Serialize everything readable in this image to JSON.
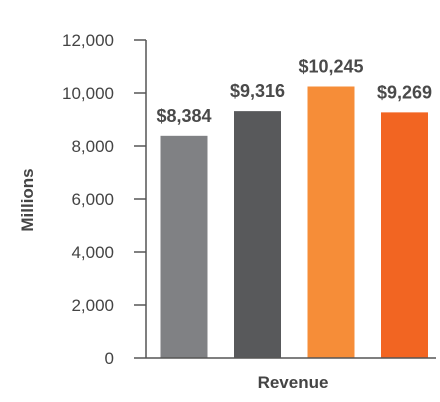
{
  "chart_data": {
    "type": "bar",
    "categories": [
      "",
      "",
      "",
      ""
    ],
    "values": [
      8384,
      9316,
      10245,
      9269
    ],
    "data_labels": [
      "$8,384",
      "$9,316",
      "$10,245",
      "$9,269"
    ],
    "colors": [
      "#808184",
      "#58595b",
      "#f68d38",
      "#f26522"
    ],
    "title": "",
    "xlabel": "Revenue",
    "ylabel": "Millions",
    "ylim": [
      0,
      12000
    ],
    "yticks": [
      0,
      2000,
      4000,
      6000,
      8000,
      10000,
      12000
    ],
    "ytick_labels": [
      "0",
      "2,000",
      "4,000",
      "6,000",
      "8,000",
      "10,000",
      "12,000"
    ],
    "grid": false,
    "legend": "none"
  }
}
